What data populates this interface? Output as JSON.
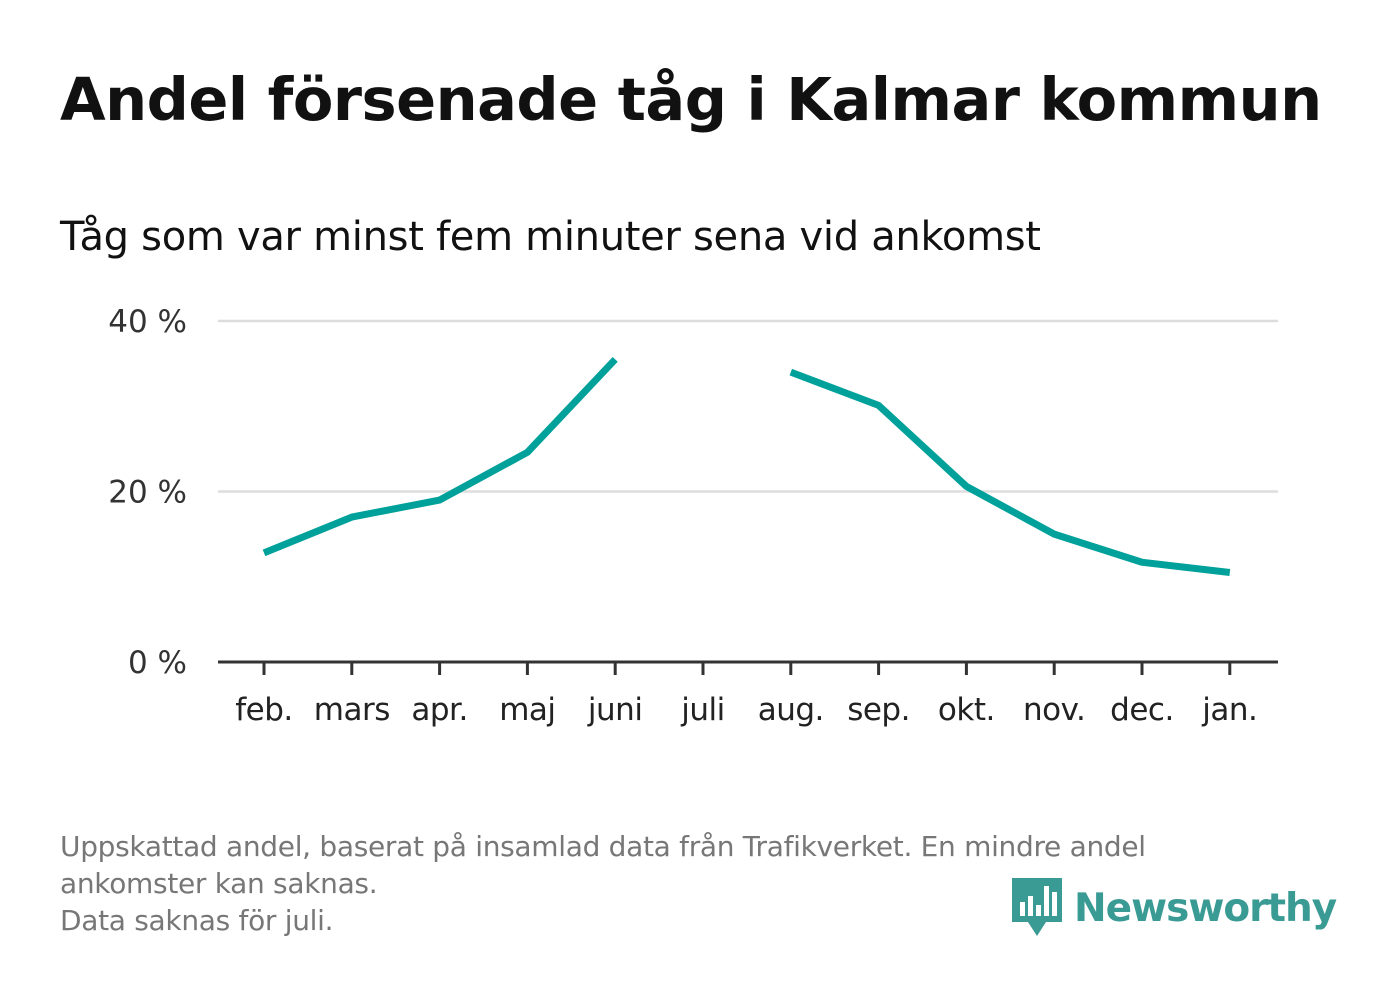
{
  "title": "Andel försenade tåg i Kalmar kommun",
  "subtitle": "Tåg som var minst fem minuter sena vid ankomst",
  "footnote": {
    "line1": "Uppskattad andel, baserat på insamlad data från Trafikverket. En mindre andel",
    "line2": "ankomster kan saknas.",
    "line3": "Data saknas för juli."
  },
  "logo": {
    "name": "Newsworthy",
    "icon": "bar-chart-speech-bubble-icon"
  },
  "colors": {
    "line": "#00a19a",
    "grid": "#dddddd",
    "axis": "#333333",
    "logo": "#3a9a94",
    "footnote": "#777777"
  },
  "chart_data": {
    "type": "line",
    "title": "Andel försenade tåg i Kalmar kommun",
    "subtitle": "Tåg som var minst fem minuter sena vid ankomst",
    "xlabel": "",
    "ylabel": "",
    "categories": [
      "feb.",
      "mars",
      "apr.",
      "maj",
      "juni",
      "juli",
      "aug.",
      "sep.",
      "okt.",
      "nov.",
      "dec.",
      "jan."
    ],
    "series": [
      {
        "values": [
          12.8,
          17.0,
          19.0,
          24.6,
          35.5,
          null,
          34.0,
          30.1,
          20.6,
          15.0,
          11.7,
          10.5
        ]
      }
    ],
    "ylim": [
      0,
      40
    ],
    "yticks": [
      0,
      20,
      40
    ],
    "ytick_labels": [
      "0 %",
      "20 %",
      "40 %"
    ],
    "grid": true,
    "legend": "none"
  }
}
